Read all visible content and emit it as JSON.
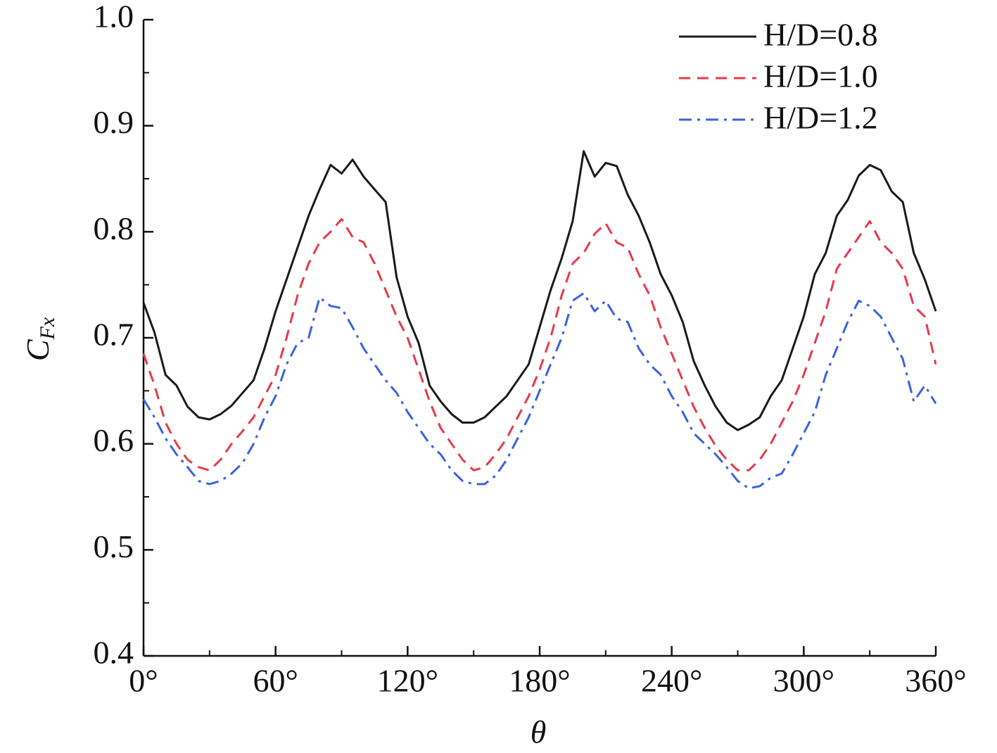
{
  "chart_data": {
    "type": "line",
    "xlabel": "θ",
    "ylabel": {
      "text": "C",
      "subscript": "Fx"
    },
    "x": [
      0,
      5,
      10,
      15,
      20,
      25,
      30,
      35,
      40,
      45,
      50,
      55,
      60,
      65,
      70,
      75,
      80,
      85,
      90,
      95,
      100,
      105,
      110,
      115,
      120,
      125,
      130,
      135,
      140,
      145,
      150,
      155,
      160,
      165,
      170,
      175,
      180,
      185,
      190,
      195,
      200,
      205,
      210,
      215,
      220,
      225,
      230,
      235,
      240,
      245,
      250,
      255,
      260,
      265,
      270,
      275,
      280,
      285,
      290,
      295,
      300,
      305,
      310,
      315,
      320,
      325,
      330,
      335,
      340,
      345,
      350,
      355,
      360
    ],
    "series": [
      {
        "name": "H/D=0.8",
        "color": "#1a1a1a",
        "dash": "none",
        "values": [
          0.733,
          0.705,
          0.665,
          0.655,
          0.635,
          0.625,
          0.623,
          0.628,
          0.636,
          0.648,
          0.66,
          0.69,
          0.725,
          0.755,
          0.785,
          0.815,
          0.84,
          0.863,
          0.855,
          0.868,
          0.852,
          0.84,
          0.828,
          0.757,
          0.72,
          0.695,
          0.655,
          0.64,
          0.628,
          0.62,
          0.62,
          0.625,
          0.635,
          0.645,
          0.66,
          0.675,
          0.71,
          0.745,
          0.775,
          0.81,
          0.876,
          0.852,
          0.865,
          0.862,
          0.835,
          0.815,
          0.79,
          0.76,
          0.74,
          0.715,
          0.678,
          0.655,
          0.635,
          0.62,
          0.613,
          0.618,
          0.625,
          0.645,
          0.66,
          0.69,
          0.72,
          0.76,
          0.78,
          0.815,
          0.83,
          0.853,
          0.863,
          0.858,
          0.838,
          0.828,
          0.78,
          0.755,
          0.725
        ]
      },
      {
        "name": "H/D=1.0",
        "color": "#e8394a",
        "dash": "16,10",
        "values": [
          0.685,
          0.655,
          0.62,
          0.6,
          0.585,
          0.578,
          0.575,
          0.585,
          0.6,
          0.612,
          0.625,
          0.645,
          0.665,
          0.7,
          0.74,
          0.77,
          0.79,
          0.8,
          0.812,
          0.795,
          0.79,
          0.77,
          0.745,
          0.72,
          0.7,
          0.67,
          0.64,
          0.615,
          0.6,
          0.585,
          0.575,
          0.578,
          0.59,
          0.605,
          0.625,
          0.645,
          0.67,
          0.7,
          0.74,
          0.77,
          0.78,
          0.798,
          0.808,
          0.79,
          0.785,
          0.76,
          0.74,
          0.71,
          0.685,
          0.66,
          0.635,
          0.615,
          0.598,
          0.585,
          0.575,
          0.575,
          0.585,
          0.6,
          0.62,
          0.64,
          0.665,
          0.695,
          0.725,
          0.765,
          0.78,
          0.795,
          0.81,
          0.79,
          0.78,
          0.765,
          0.73,
          0.72,
          0.675
        ]
      },
      {
        "name": "H/D=1.2",
        "color": "#3a62e0",
        "dash": "18,8,4,8",
        "values": [
          0.642,
          0.625,
          0.605,
          0.59,
          0.578,
          0.565,
          0.562,
          0.565,
          0.572,
          0.582,
          0.6,
          0.625,
          0.645,
          0.675,
          0.695,
          0.7,
          0.738,
          0.73,
          0.728,
          0.71,
          0.69,
          0.675,
          0.66,
          0.648,
          0.63,
          0.615,
          0.6,
          0.59,
          0.575,
          0.565,
          0.562,
          0.562,
          0.57,
          0.585,
          0.605,
          0.625,
          0.65,
          0.675,
          0.7,
          0.735,
          0.742,
          0.725,
          0.735,
          0.718,
          0.715,
          0.69,
          0.675,
          0.665,
          0.645,
          0.63,
          0.61,
          0.6,
          0.59,
          0.578,
          0.565,
          0.558,
          0.56,
          0.568,
          0.572,
          0.59,
          0.61,
          0.63,
          0.665,
          0.69,
          0.715,
          0.735,
          0.73,
          0.72,
          0.7,
          0.68,
          0.64,
          0.655,
          0.638
        ]
      }
    ],
    "xlim": [
      0,
      360
    ],
    "xticks": [
      {
        "value": 0,
        "label": "0°"
      },
      {
        "value": 60,
        "label": "60°"
      },
      {
        "value": 120,
        "label": "120°"
      },
      {
        "value": 180,
        "label": "180°"
      },
      {
        "value": 240,
        "label": "240°"
      },
      {
        "value": 300,
        "label": "300°"
      },
      {
        "value": 360,
        "label": "360°"
      }
    ],
    "xminorticks": [
      30,
      90,
      150,
      210,
      270,
      330
    ],
    "ylim": [
      0.4,
      1.0
    ],
    "yticks": [
      0.4,
      0.5,
      0.6,
      0.7,
      0.8,
      0.9,
      {
        "value": 1,
        "label": "1.0"
      }
    ],
    "yminorticks": [
      0.45,
      0.55,
      0.65,
      0.75,
      0.85,
      0.95
    ],
    "legend": "upper right"
  }
}
